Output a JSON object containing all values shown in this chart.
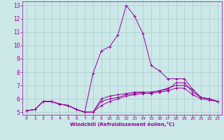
{
  "xlabel": "Windchill (Refroidissement éolien,°C)",
  "xlim": [
    -0.5,
    23.5
  ],
  "ylim": [
    4.8,
    13.3
  ],
  "yticks": [
    5,
    6,
    7,
    8,
    9,
    10,
    11,
    12,
    13
  ],
  "xticks": [
    0,
    1,
    2,
    3,
    4,
    5,
    6,
    7,
    8,
    9,
    10,
    11,
    12,
    13,
    14,
    15,
    16,
    17,
    18,
    19,
    20,
    21,
    22,
    23
  ],
  "background_color": "#cce8e8",
  "line_color": "#990099",
  "grid_color": "#aacccc",
  "lines": [
    [
      5.1,
      5.2,
      5.8,
      5.8,
      5.6,
      5.5,
      5.2,
      5.0,
      7.9,
      9.6,
      9.9,
      10.8,
      13.0,
      12.2,
      10.9,
      8.5,
      8.1,
      7.5,
      7.5,
      7.5,
      6.7,
      6.1,
      6.0,
      5.8
    ],
    [
      5.1,
      5.2,
      5.8,
      5.8,
      5.6,
      5.5,
      5.2,
      5.0,
      5.0,
      6.0,
      6.2,
      6.3,
      6.4,
      6.5,
      6.5,
      6.5,
      6.6,
      6.8,
      7.0,
      7.0,
      6.7,
      6.1,
      6.0,
      5.8
    ],
    [
      5.1,
      5.2,
      5.8,
      5.8,
      5.6,
      5.5,
      5.2,
      5.0,
      5.0,
      5.8,
      6.0,
      6.1,
      6.3,
      6.4,
      6.5,
      6.5,
      6.6,
      6.7,
      7.2,
      7.2,
      6.5,
      6.1,
      6.0,
      5.8
    ],
    [
      5.1,
      5.2,
      5.8,
      5.8,
      5.6,
      5.5,
      5.2,
      5.0,
      5.0,
      5.5,
      5.8,
      6.0,
      6.2,
      6.3,
      6.4,
      6.4,
      6.5,
      6.6,
      6.8,
      6.8,
      6.3,
      6.0,
      5.9,
      5.8
    ]
  ]
}
